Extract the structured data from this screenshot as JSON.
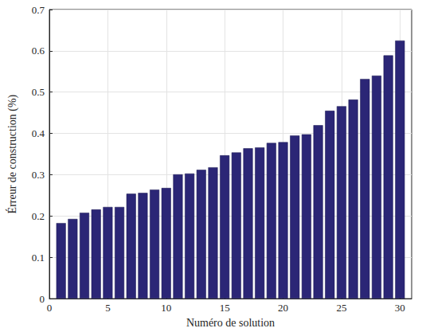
{
  "chart_data": {
    "type": "bar",
    "xlabel": "Numéro de solution",
    "ylabel": "Érreur de construction (%)",
    "x": [
      1,
      2,
      3,
      4,
      5,
      6,
      7,
      8,
      9,
      10,
      11,
      12,
      13,
      14,
      15,
      16,
      17,
      18,
      19,
      20,
      21,
      22,
      23,
      24,
      25,
      26,
      27,
      28,
      29,
      30
    ],
    "values": [
      0.183,
      0.193,
      0.208,
      0.216,
      0.222,
      0.222,
      0.254,
      0.256,
      0.264,
      0.268,
      0.301,
      0.303,
      0.312,
      0.318,
      0.347,
      0.354,
      0.364,
      0.366,
      0.377,
      0.379,
      0.395,
      0.398,
      0.42,
      0.455,
      0.466,
      0.482,
      0.532,
      0.54,
      0.589,
      0.625
    ],
    "color": "#2b2676",
    "xlim": [
      0,
      31
    ],
    "xticks": [
      0,
      5,
      10,
      15,
      20,
      25,
      30
    ],
    "ylim": [
      0,
      0.7
    ],
    "yticks": [
      0,
      0.1,
      0.2,
      0.3,
      0.4,
      0.5,
      0.6,
      0.7
    ],
    "grid": true
  }
}
